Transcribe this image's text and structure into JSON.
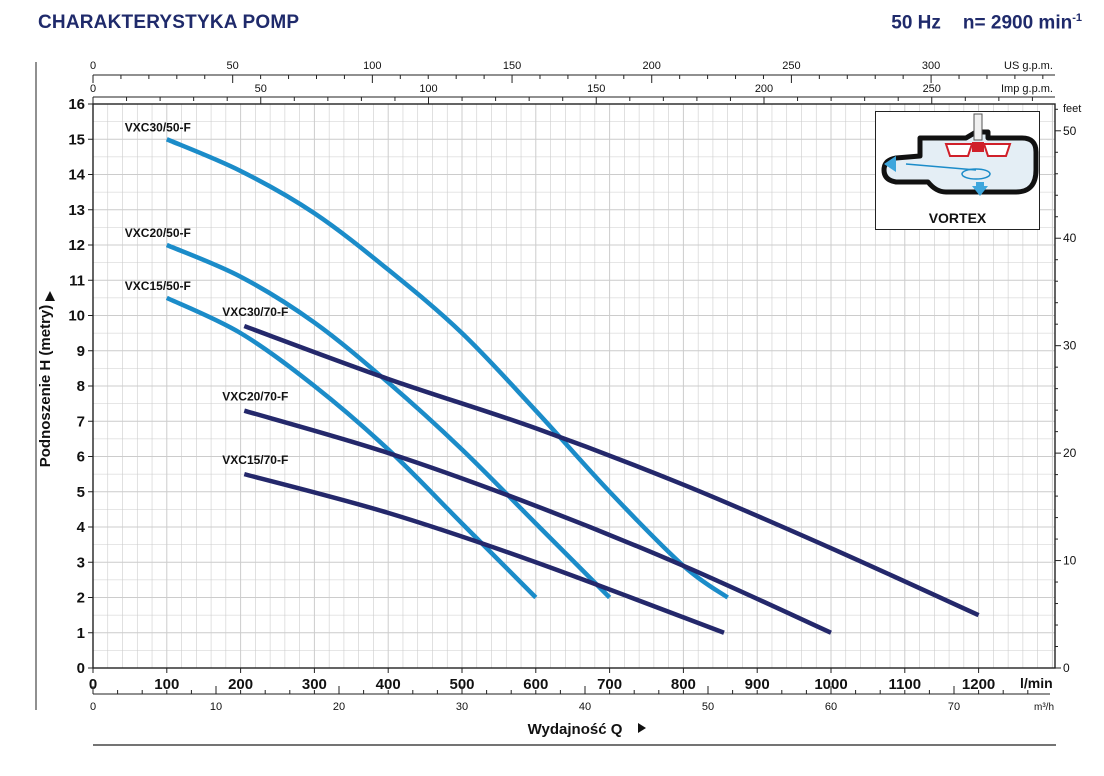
{
  "header": {
    "title": "CHARAKTERYSTYKA POMP",
    "frequency": "50 Hz",
    "speed": "n= 2900 min",
    "speed_exp": "-1"
  },
  "inset": {
    "label": "VORTEX",
    "icon": "vortex-impeller-icon"
  },
  "chart_data": {
    "type": "line",
    "title": "",
    "xlabel": "Wydajność Q",
    "ylabel": "Podnoszenie H (metry)",
    "xlim": [
      0,
      1300
    ],
    "ylim": [
      0,
      16
    ],
    "grid": true,
    "x_axes": [
      {
        "name": "l/min",
        "position": "bottom",
        "ticks": [
          0,
          100,
          200,
          300,
          400,
          500,
          600,
          700,
          800,
          900,
          1000,
          1100,
          1200
        ],
        "unit": "l/min"
      },
      {
        "name": "m³/h",
        "position": "bottom-secondary",
        "ticks": [
          0,
          10,
          20,
          30,
          40,
          50,
          60,
          70
        ],
        "unit": "m³/h"
      },
      {
        "name": "US g.p.m.",
        "position": "top",
        "ticks": [
          0,
          50,
          100,
          150,
          200,
          250,
          300
        ],
        "unit": "US g.p.m."
      },
      {
        "name": "Imp g.p.m.",
        "position": "top-secondary",
        "ticks": [
          0,
          50,
          100,
          150,
          200,
          250
        ],
        "unit": "Imp g.p.m."
      }
    ],
    "y_axes": [
      {
        "name": "metry",
        "position": "left",
        "ticks": [
          0,
          1,
          2,
          3,
          4,
          5,
          6,
          7,
          8,
          9,
          10,
          11,
          12,
          13,
          14,
          15,
          16
        ]
      },
      {
        "name": "feet",
        "position": "right",
        "ticks": [
          0,
          10,
          20,
          30,
          40,
          50
        ],
        "unit": "feet"
      }
    ],
    "colors": {
      "series_50": "#1b8cc9",
      "series_70": "#24286b",
      "grid": "#c8c8c8"
    },
    "series": [
      {
        "name": "VXC30/50-F",
        "group": "50",
        "x": [
          100,
          200,
          300,
          400,
          500,
          600,
          700,
          800,
          860
        ],
        "y": [
          15.0,
          14.1,
          12.9,
          11.3,
          9.5,
          7.3,
          5.0,
          2.9,
          2.0
        ]
      },
      {
        "name": "VXC20/50-F",
        "group": "50",
        "x": [
          100,
          200,
          300,
          400,
          500,
          600,
          700
        ],
        "y": [
          12.0,
          11.1,
          9.8,
          8.1,
          6.2,
          4.1,
          2.0
        ]
      },
      {
        "name": "VXC15/50-F",
        "group": "50",
        "x": [
          100,
          200,
          300,
          400,
          500,
          600
        ],
        "y": [
          10.5,
          9.5,
          8.0,
          6.2,
          4.1,
          2.0
        ]
      },
      {
        "name": "VXC30/70-F",
        "group": "70",
        "x": [
          205,
          400,
          600,
          800,
          1000,
          1200
        ],
        "y": [
          9.7,
          8.2,
          6.8,
          5.2,
          3.4,
          1.5
        ]
      },
      {
        "name": "VXC20/70-F",
        "group": "70",
        "x": [
          205,
          400,
          600,
          800,
          1000
        ],
        "y": [
          7.3,
          6.1,
          4.6,
          2.9,
          1.0
        ]
      },
      {
        "name": "VXC15/70-F",
        "group": "70",
        "x": [
          205,
          400,
          600,
          855
        ],
        "y": [
          5.5,
          4.4,
          3.0,
          1.0
        ]
      }
    ]
  }
}
